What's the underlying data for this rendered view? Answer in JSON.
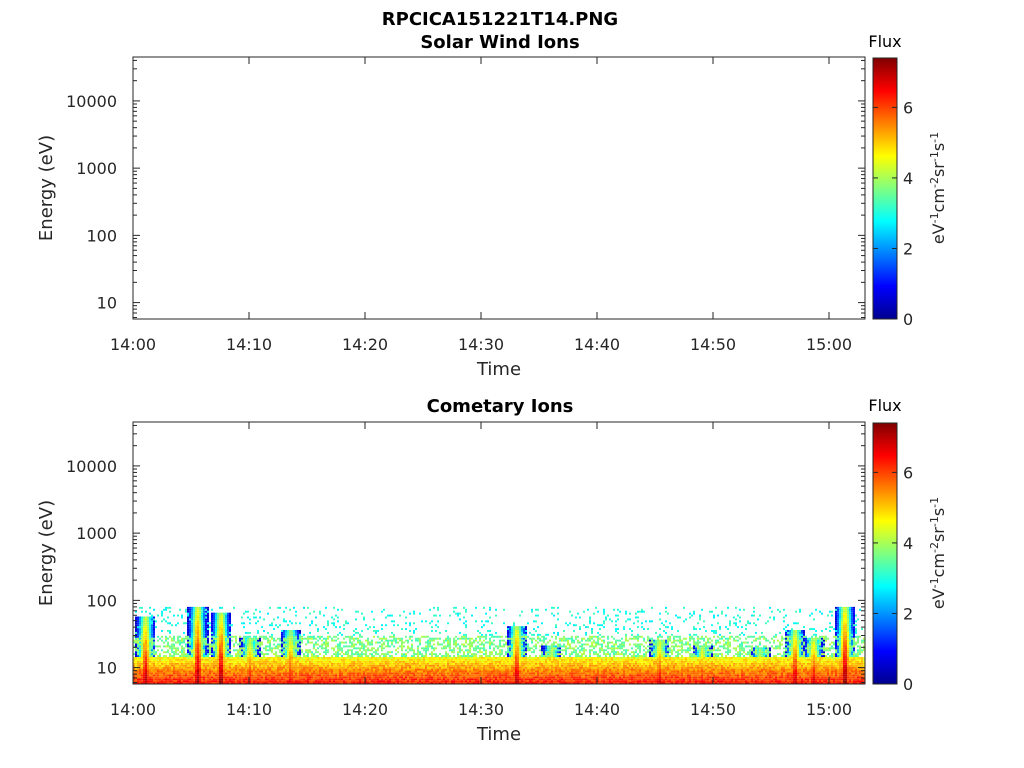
{
  "figure_title": "RPCICA151221T14.PNG",
  "chart_data": [
    {
      "type": "heatmap",
      "title": "Solar Wind Ions",
      "xlabel": "Time",
      "ylabel": "Energy (eV)",
      "x_tick_labels": [
        "14:00",
        "14:10",
        "14:20",
        "14:30",
        "14:40",
        "14:50",
        "15:00"
      ],
      "y_tick_labels": [
        "10",
        "100",
        "1000",
        "10000"
      ],
      "y_scale": "log",
      "colorbar": {
        "label": "Flux",
        "units": "eV-1 cm-2 sr-1 s-1",
        "tick_labels": [
          "0",
          "2",
          "4",
          "6"
        ],
        "range": [
          0,
          7.4
        ]
      },
      "data": "empty (no flux recorded)"
    },
    {
      "type": "heatmap",
      "title": "Cometary Ions",
      "xlabel": "Time",
      "ylabel": "Energy (eV)",
      "x_tick_labels": [
        "14:00",
        "14:10",
        "14:20",
        "14:30",
        "14:40",
        "14:50",
        "15:00"
      ],
      "y_tick_labels": [
        "10",
        "100",
        "1000",
        "10000"
      ],
      "y_scale": "log",
      "colorbar": {
        "label": "Flux",
        "units": "eV-1 cm-2 sr-1 s-1",
        "tick_labels": [
          "0",
          "2",
          "4",
          "6"
        ],
        "range": [
          0,
          7.4
        ]
      },
      "bursts": [
        {
          "minute": 1.0,
          "peak_energy_ev": 40,
          "flux": 7.0
        },
        {
          "minute": 5.5,
          "peak_energy_ev": 60,
          "flux": 7.2
        },
        {
          "minute": 7.5,
          "peak_energy_ev": 45,
          "flux": 7.3
        },
        {
          "minute": 10.0,
          "peak_energy_ev": 20,
          "flux": 6.5
        },
        {
          "minute": 13.5,
          "peak_energy_ev": 25,
          "flux": 6.5
        },
        {
          "minute": 33.0,
          "peak_energy_ev": 30,
          "flux": 7.0
        },
        {
          "minute": 36.0,
          "peak_energy_ev": 15,
          "flux": 6.0
        },
        {
          "minute": 45.3,
          "peak_energy_ev": 18,
          "flux": 6.8
        },
        {
          "minute": 49.0,
          "peak_energy_ev": 15,
          "flux": 6.5
        },
        {
          "minute": 54.0,
          "peak_energy_ev": 14,
          "flux": 6.0
        },
        {
          "minute": 57.0,
          "peak_energy_ev": 25,
          "flux": 7.0
        },
        {
          "minute": 58.6,
          "peak_energy_ev": 20,
          "flux": 6.8
        },
        {
          "minute": 61.3,
          "peak_energy_ev": 60,
          "flux": 7.3
        }
      ],
      "background_flux_range": [
        2.5,
        4.5
      ],
      "max_energy_with_counts_ev": 80
    }
  ]
}
